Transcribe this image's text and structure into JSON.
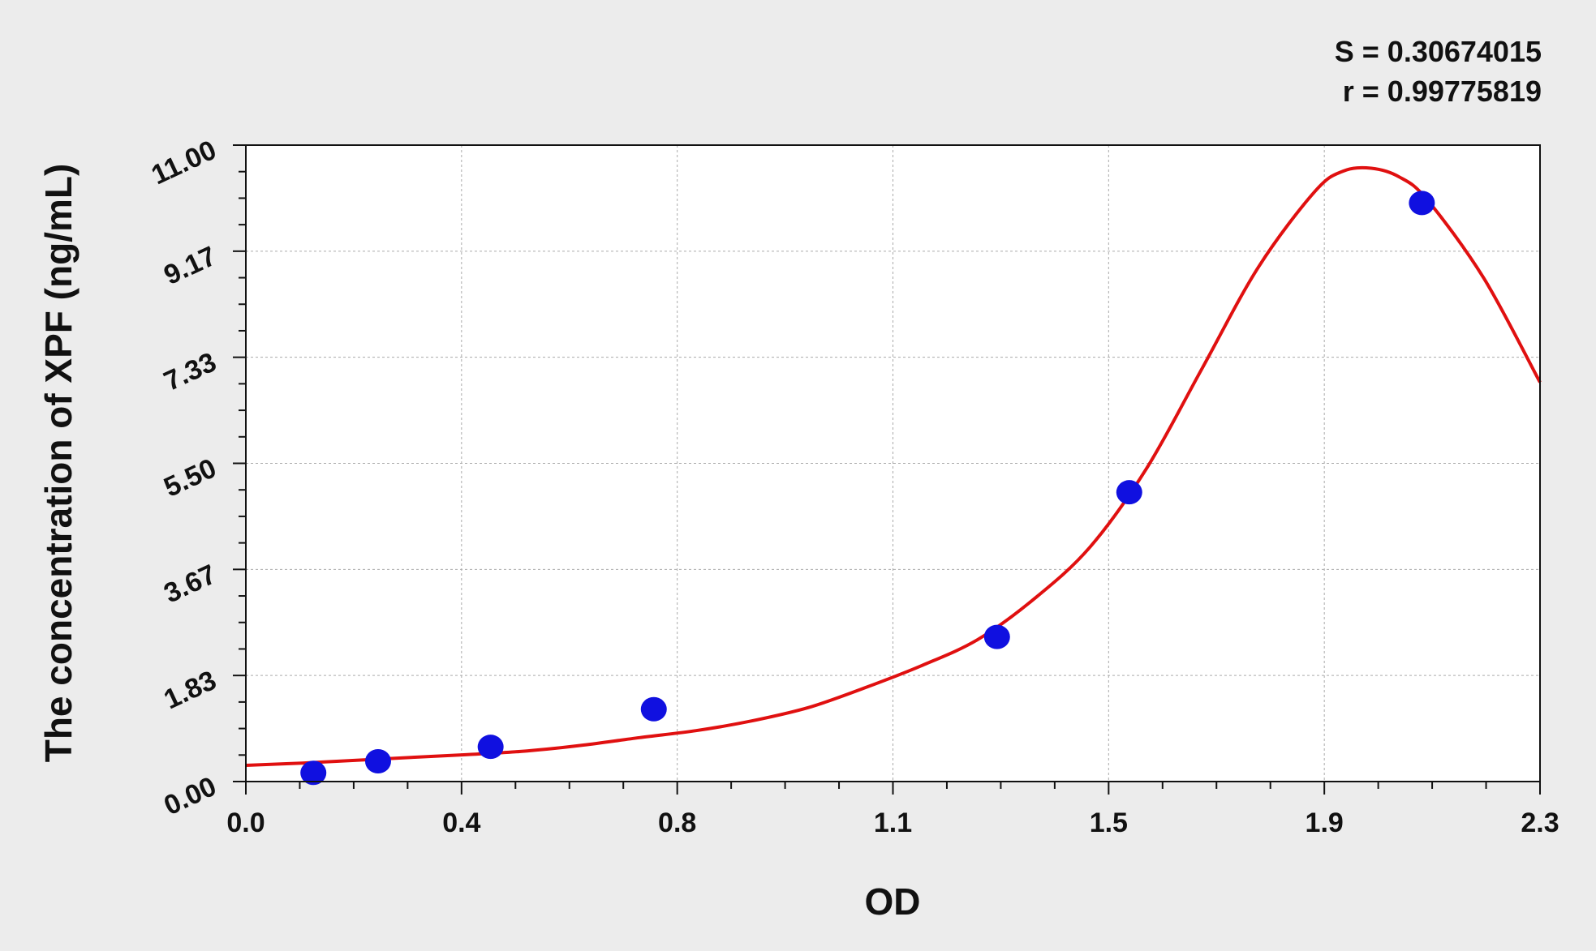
{
  "chart_data": {
    "type": "scatter",
    "title": "",
    "xlabel": "OD",
    "ylabel": "The concentration of XPF (ng/mL)",
    "xlim": [
      0.0,
      2.3
    ],
    "ylim": [
      0.0,
      11.0
    ],
    "x_ticks": [
      "0.0",
      "0.4",
      "0.8",
      "1.1",
      "1.5",
      "1.9",
      "2.3"
    ],
    "y_ticks": [
      "0.00",
      "1.83",
      "3.67",
      "5.50",
      "7.33",
      "9.17",
      "11.00"
    ],
    "grid": true,
    "legend": "none",
    "stats": [
      "S = 0.30674015",
      "r = 0.99775819"
    ],
    "series": [
      {
        "kind": "points",
        "color": "#1010e0",
        "x": [
          0.12,
          0.235,
          0.435,
          0.725,
          1.335,
          1.57,
          2.09
        ],
        "y": [
          0.15,
          0.35,
          0.6,
          1.25,
          2.5,
          5.0,
          10.0
        ]
      },
      {
        "kind": "fitted_curve",
        "color": "#e01010",
        "x": [
          0.0,
          0.1,
          0.2,
          0.3,
          0.4,
          0.5,
          0.6,
          0.7,
          0.8,
          0.9,
          1.0,
          1.1,
          1.2,
          1.3,
          1.4,
          1.5,
          1.6,
          1.7,
          1.8,
          1.9,
          1.95,
          2.0,
          2.05,
          2.1,
          2.2,
          2.3
        ],
        "y": [
          0.28,
          0.32,
          0.37,
          0.42,
          0.47,
          0.53,
          0.63,
          0.76,
          0.88,
          1.05,
          1.28,
          1.62,
          2.0,
          2.45,
          3.15,
          4.05,
          5.4,
          7.15,
          8.9,
          10.2,
          10.55,
          10.6,
          10.45,
          10.05,
          8.7,
          6.9
        ]
      }
    ]
  }
}
